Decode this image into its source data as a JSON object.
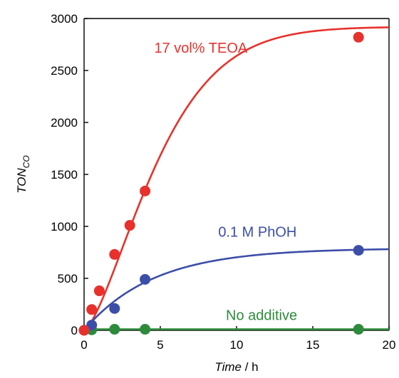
{
  "chart_data": {
    "type": "scatter",
    "xlabel": {
      "italic": "Time",
      "rest": " / h"
    },
    "ylabel": {
      "main": "TON",
      "sub": "CO"
    },
    "xlim": [
      0,
      20
    ],
    "ylim": [
      0,
      3000
    ],
    "xticks": [
      0,
      5,
      10,
      15,
      20
    ],
    "yticks": [
      0,
      500,
      1000,
      1500,
      2000,
      2500,
      3000
    ],
    "xtick_labels": [
      "0",
      "5",
      "10",
      "15",
      "20"
    ],
    "ytick_labels": [
      "0",
      "500",
      "1000",
      "1500",
      "2000",
      "2500",
      "3000"
    ],
    "grid": false,
    "legend": "none",
    "series": [
      {
        "name": "17 vol% TEOA",
        "color": "#e8312c",
        "x": [
          0,
          0.5,
          1,
          2,
          3,
          4,
          18
        ],
        "y": [
          0,
          200,
          380,
          730,
          1010,
          1340,
          2820
        ],
        "fit": {
          "model": "sigmoid",
          "a": 2920,
          "k": 0.18,
          "n": 1.45
        }
      },
      {
        "name": "0.1 M PhOH",
        "color": "#3c4ea8",
        "x": [
          0,
          0.5,
          2,
          4,
          18
        ],
        "y": [
          0,
          50,
          210,
          490,
          770
        ],
        "fit": {
          "model": "exponential",
          "a": 790,
          "k": 0.22
        }
      },
      {
        "name": "No additive",
        "color": "#2e8b3c",
        "x": [
          0.5,
          2,
          4,
          18
        ],
        "y": [
          5,
          10,
          10,
          10
        ],
        "fit": {
          "model": "constant",
          "a": 10
        }
      }
    ],
    "annotations": [
      {
        "text": "17 vol% TEOA",
        "series": 0,
        "x": 4.6,
        "y": 2670
      },
      {
        "text": "0.1 M PhOH",
        "series": 1,
        "x": 8.8,
        "y": 900
      },
      {
        "text": "No additive",
        "series": 2,
        "x": 9.3,
        "y": 100
      }
    ]
  }
}
